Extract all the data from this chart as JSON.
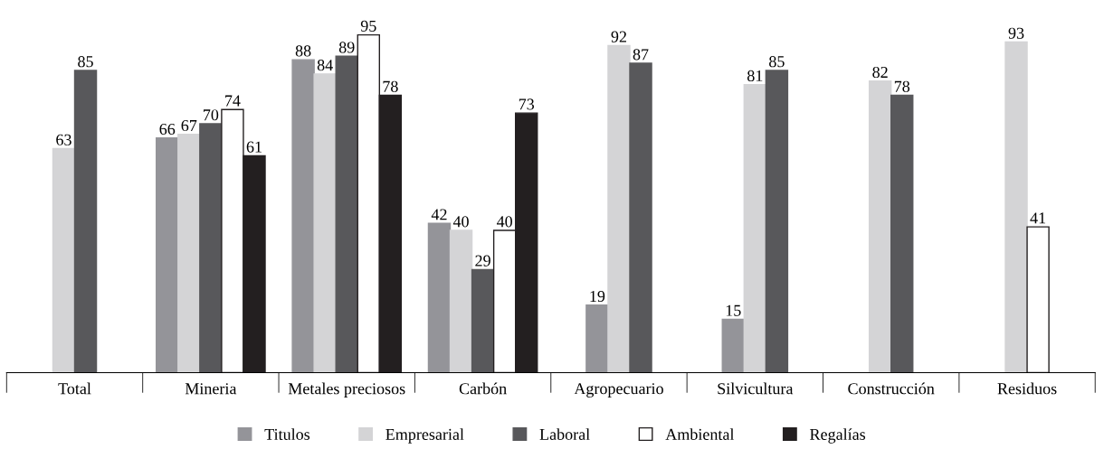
{
  "chart_data": {
    "type": "bar",
    "categories": [
      "Total",
      "Mineria",
      "Metales preciosos",
      "Carbón",
      "Agropecuario",
      "Silvicultura",
      "Construcción",
      "Residuos"
    ],
    "series": [
      {
        "name": "Titulos",
        "color": "#949499",
        "values": [
          null,
          66,
          88,
          42,
          19,
          15,
          null,
          null
        ]
      },
      {
        "name": "Empresarial",
        "color": "#d4d4d6",
        "values": [
          63,
          67,
          84,
          40,
          92,
          81,
          82,
          93
        ]
      },
      {
        "name": "Laboral",
        "color": "#58585b",
        "values": [
          85,
          70,
          89,
          29,
          87,
          85,
          78,
          null
        ]
      },
      {
        "name": "Ambiental",
        "color": "#ffffff",
        "values": [
          null,
          74,
          95,
          40,
          null,
          null,
          null,
          41
        ]
      },
      {
        "name": "Regalías",
        "color": "#231f20",
        "values": [
          null,
          61,
          78,
          73,
          null,
          null,
          null,
          null
        ]
      }
    ],
    "data_labels": true,
    "legend": "bottom",
    "grid": false,
    "tick_labels": "x"
  }
}
